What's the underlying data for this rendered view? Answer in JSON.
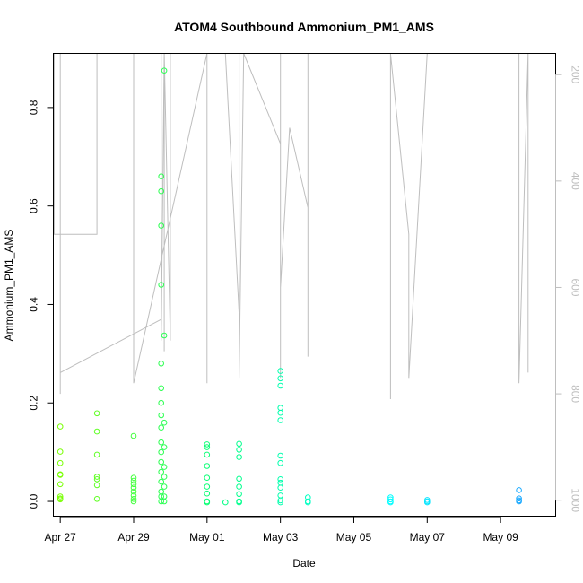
{
  "chart_data": {
    "type": "scatter",
    "title": "ATOM4 Southbound Ammonium_PM1_AMS",
    "xlabel": "Date",
    "ylabel": "Ammonium_PM1_AMS",
    "x_ticks": [
      "Apr 27",
      "Apr 29",
      "May 01",
      "May 03",
      "May 05",
      "May 07",
      "May 09"
    ],
    "xlim": [
      "2018-04-26T19:30",
      "2018-05-10T12:00"
    ],
    "ylim": [
      -0.03,
      0.91
    ],
    "y_ticks": [
      0.0,
      0.2,
      0.4,
      0.6,
      0.8
    ],
    "y_tick_labels": [
      "0.0",
      "0.2",
      "0.4",
      "0.6",
      "0.8"
    ],
    "right_axis": {
      "reversed": true,
      "lim": [
        160,
        1030
      ],
      "ticks": [
        200,
        400,
        600,
        800,
        1000
      ],
      "tick_labels": [
        "200",
        "400",
        "600",
        "800",
        "1000"
      ],
      "color": "#bebebe"
    },
    "series": [
      {
        "marker": "open-circle",
        "color_scale": [
          "#7fff00",
          "#00ff7f",
          "#00ffff",
          "#1e90ff"
        ],
        "points": [
          [
            "2018-04-27T00:00",
            0.152
          ],
          [
            "2018-04-27T00:00",
            0.101
          ],
          [
            "2018-04-27T00:00",
            0.078
          ],
          [
            "2018-04-27T00:00",
            0.055
          ],
          [
            "2018-04-27T00:00",
            0.054
          ],
          [
            "2018-04-27T00:00",
            0.035
          ],
          [
            "2018-04-27T00:00",
            0.01
          ],
          [
            "2018-04-27T00:00",
            0.006
          ],
          [
            "2018-04-27T00:00",
            0.004
          ],
          [
            "2018-04-28T00:00",
            0.179
          ],
          [
            "2018-04-28T00:00",
            0.142
          ],
          [
            "2018-04-28T00:00",
            0.095
          ],
          [
            "2018-04-28T00:00",
            0.05
          ],
          [
            "2018-04-28T00:00",
            0.045
          ],
          [
            "2018-04-28T00:00",
            0.033
          ],
          [
            "2018-04-28T00:00",
            0.005
          ],
          [
            "2018-04-29T00:00",
            0.133
          ],
          [
            "2018-04-29T00:00",
            0.048
          ],
          [
            "2018-04-29T00:00",
            0.042
          ],
          [
            "2018-04-29T00:00",
            0.035
          ],
          [
            "2018-04-29T00:00",
            0.028
          ],
          [
            "2018-04-29T00:00",
            0.02
          ],
          [
            "2018-04-29T00:00",
            0.012
          ],
          [
            "2018-04-29T00:00",
            0.005
          ],
          [
            "2018-04-29T00:00",
            0.0
          ],
          [
            "2018-04-29T18:00",
            0.66
          ],
          [
            "2018-04-29T18:00",
            0.63
          ],
          [
            "2018-04-29T18:00",
            0.56
          ],
          [
            "2018-04-29T18:00",
            0.44
          ],
          [
            "2018-04-29T18:00",
            0.28
          ],
          [
            "2018-04-29T18:00",
            0.23
          ],
          [
            "2018-04-29T18:00",
            0.2
          ],
          [
            "2018-04-29T18:00",
            0.175
          ],
          [
            "2018-04-29T18:00",
            0.15
          ],
          [
            "2018-04-29T18:00",
            0.12
          ],
          [
            "2018-04-29T18:00",
            0.1
          ],
          [
            "2018-04-29T18:00",
            0.08
          ],
          [
            "2018-04-29T18:00",
            0.06
          ],
          [
            "2018-04-29T18:00",
            0.04
          ],
          [
            "2018-04-29T18:00",
            0.02
          ],
          [
            "2018-04-29T18:00",
            0.01
          ],
          [
            "2018-04-29T18:00",
            0.0
          ],
          [
            "2018-04-29T20:00",
            0.875
          ],
          [
            "2018-04-29T20:00",
            0.337
          ],
          [
            "2018-04-29T20:00",
            0.16
          ],
          [
            "2018-04-29T20:00",
            0.11
          ],
          [
            "2018-04-29T20:00",
            0.07
          ],
          [
            "2018-04-29T20:00",
            0.05
          ],
          [
            "2018-04-29T20:00",
            0.03
          ],
          [
            "2018-04-29T20:00",
            0.01
          ],
          [
            "2018-04-29T20:00",
            0.0
          ],
          [
            "2018-05-01T00:00",
            0.116
          ],
          [
            "2018-05-01T00:00",
            0.11
          ],
          [
            "2018-05-01T00:00",
            0.095
          ],
          [
            "2018-05-01T00:00",
            0.072
          ],
          [
            "2018-05-01T00:00",
            0.048
          ],
          [
            "2018-05-01T00:00",
            0.03
          ],
          [
            "2018-05-01T00:00",
            0.016
          ],
          [
            "2018-05-01T00:00",
            0.0
          ],
          [
            "2018-05-01T00:00",
            -0.002
          ],
          [
            "2018-05-01T12:00",
            -0.002
          ],
          [
            "2018-05-01T21:00",
            0.117
          ],
          [
            "2018-05-01T21:00",
            0.105
          ],
          [
            "2018-05-01T21:00",
            0.09
          ],
          [
            "2018-05-01T21:00",
            0.046
          ],
          [
            "2018-05-01T21:00",
            0.03
          ],
          [
            "2018-05-01T21:00",
            0.015
          ],
          [
            "2018-05-01T21:00",
            0.0
          ],
          [
            "2018-05-01T21:00",
            -0.002
          ],
          [
            "2018-05-03T00:00",
            0.265
          ],
          [
            "2018-05-03T00:00",
            0.25
          ],
          [
            "2018-05-03T00:00",
            0.235
          ],
          [
            "2018-05-03T00:00",
            0.19
          ],
          [
            "2018-05-03T00:00",
            0.18
          ],
          [
            "2018-05-03T00:00",
            0.165
          ],
          [
            "2018-05-03T00:00",
            0.093
          ],
          [
            "2018-05-03T00:00",
            0.078
          ],
          [
            "2018-05-03T00:00",
            0.045
          ],
          [
            "2018-05-03T00:00",
            0.038
          ],
          [
            "2018-05-03T00:00",
            0.028
          ],
          [
            "2018-05-03T00:00",
            0.012
          ],
          [
            "2018-05-03T00:00",
            0.002
          ],
          [
            "2018-05-03T00:00",
            -0.002
          ],
          [
            "2018-05-03T18:00",
            0.008
          ],
          [
            "2018-05-03T18:00",
            0.0
          ],
          [
            "2018-05-03T18:00",
            -0.002
          ],
          [
            "2018-05-06T00:00",
            0.008
          ],
          [
            "2018-05-06T00:00",
            0.004
          ],
          [
            "2018-05-06T00:00",
            0.0
          ],
          [
            "2018-05-06T00:00",
            -0.002
          ],
          [
            "2018-05-07T00:00",
            0.003
          ],
          [
            "2018-05-07T00:00",
            0.0
          ],
          [
            "2018-05-07T00:00",
            -0.002
          ],
          [
            "2018-05-09T12:00",
            0.023
          ],
          [
            "2018-05-09T12:00",
            0.006
          ],
          [
            "2018-05-09T12:00",
            0.002
          ],
          [
            "2018-05-09T12:00",
            0.0
          ]
        ]
      },
      {
        "line_color": "#bebebe",
        "axis": "right",
        "points": [
          [
            "2018-04-26T20:00",
            150
          ],
          [
            "2018-04-26T20:00",
            500
          ],
          [
            "2018-04-27T00:00",
            500
          ],
          [
            "2018-04-27T00:00",
            160
          ],
          [
            "2018-04-28T00:00",
            160
          ],
          [
            "2018-04-28T00:00",
            500
          ],
          [
            "2018-04-27T00:00",
            500
          ],
          [
            "2018-04-27T00:00",
            800
          ],
          [
            "2018-04-27T00:00",
            760
          ],
          [
            "2018-04-29T18:00",
            660
          ],
          [
            "2018-04-29T18:00",
            160
          ],
          [
            "2018-04-29T18:00",
            700
          ],
          [
            "2018-04-29T20:00",
            160
          ],
          [
            "2018-04-29T20:00",
            720
          ],
          [
            "2018-04-29T20:00",
            160
          ],
          [
            "2018-04-30T00:00",
            700
          ],
          [
            "2018-04-30T00:00",
            160
          ],
          [
            "2018-04-29T00:00",
            160
          ],
          [
            "2018-04-29T00:00",
            780
          ],
          [
            "2018-05-01T00:00",
            160
          ],
          [
            "2018-05-01T00:00",
            780
          ],
          [
            "2018-05-01T00:00",
            160
          ],
          [
            "2018-05-01T12:00",
            160
          ],
          [
            "2018-05-01T21:00",
            650
          ],
          [
            "2018-05-01T21:00",
            160
          ],
          [
            "2018-05-01T21:00",
            770
          ],
          [
            "2018-05-02T00:00",
            160
          ],
          [
            "2018-05-03T00:00",
            330
          ],
          [
            "2018-05-03T00:00",
            160
          ],
          [
            "2018-05-03T00:00",
            770
          ],
          [
            "2018-05-03T00:00",
            600
          ],
          [
            "2018-05-03T06:00",
            300
          ],
          [
            "2018-05-03T18:00",
            450
          ],
          [
            "2018-05-03T18:00",
            730
          ],
          [
            "2018-05-03T18:00",
            160
          ],
          [
            "2018-05-06T00:00",
            160
          ],
          [
            "2018-05-06T00:00",
            810
          ],
          [
            "2018-05-06T00:00",
            160
          ],
          [
            "2018-05-06T12:00",
            500
          ],
          [
            "2018-05-06T12:00",
            770
          ],
          [
            "2018-05-07T00:00",
            160
          ],
          [
            "2018-05-09T12:00",
            160
          ],
          [
            "2018-05-09T12:00",
            780
          ],
          [
            "2018-05-09T18:00",
            160
          ],
          [
            "2018-05-09T18:00",
            760
          ]
        ]
      }
    ]
  }
}
